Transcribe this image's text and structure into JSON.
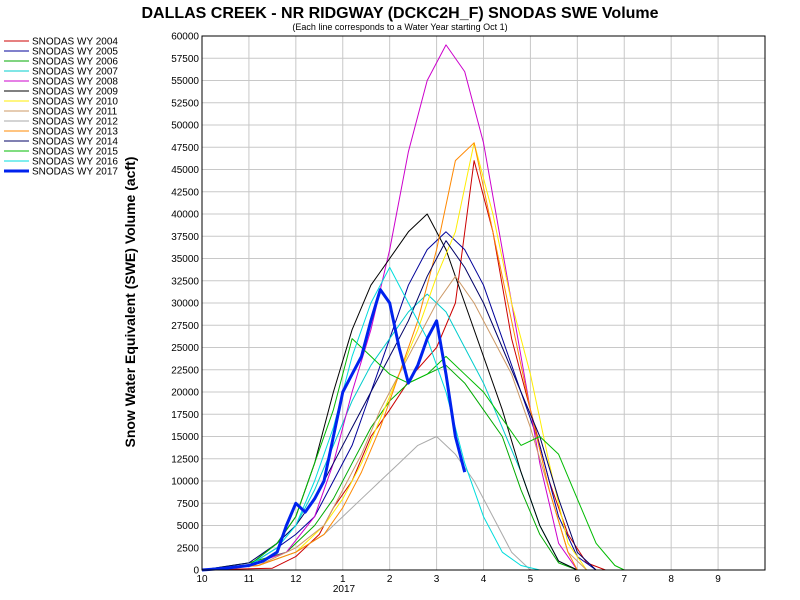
{
  "chart_data": {
    "type": "line",
    "title": "DALLAS CREEK - NR RIDGWAY (DCKC2H_F) SNODAS SWE Volume",
    "subtitle": "(Each line corresponds to a Water Year starting Oct 1)",
    "ylabel": "Snow Water Equivalent (SWE) Volume (acft)",
    "xlabel": "",
    "ylim": [
      0,
      60000
    ],
    "yticks": [
      0,
      2500,
      5000,
      7500,
      10000,
      12500,
      15000,
      17500,
      20000,
      22500,
      25000,
      27500,
      30000,
      32500,
      35000,
      37500,
      40000,
      42500,
      45000,
      47500,
      50000,
      52500,
      55000,
      57500,
      60000
    ],
    "xlim": [
      0,
      12
    ],
    "xticks": [
      {
        "x": 0,
        "label": "10"
      },
      {
        "x": 1,
        "label": "11"
      },
      {
        "x": 2,
        "label": "12"
      },
      {
        "x": 3,
        "label": "1"
      },
      {
        "x": 4,
        "label": "2"
      },
      {
        "x": 5,
        "label": "3"
      },
      {
        "x": 6,
        "label": "4"
      },
      {
        "x": 7,
        "label": "5"
      },
      {
        "x": 8,
        "label": "6"
      },
      {
        "x": 9,
        "label": "7"
      },
      {
        "x": 10,
        "label": "8"
      },
      {
        "x": 11,
        "label": "9"
      }
    ],
    "year_label": "2017",
    "grid": true,
    "legend_position": "left",
    "series": [
      {
        "name": "SNODAS WY 2004",
        "color": "#cc0000",
        "width": 1,
        "x": [
          0,
          1.5,
          2,
          2.5,
          2.8,
          3.2,
          3.6,
          4,
          4.5,
          5,
          5.4,
          5.8,
          6.2,
          6.6,
          7,
          7.4,
          7.8,
          8.2,
          8.6
        ],
        "y": [
          0,
          200,
          1500,
          4000,
          7000,
          10000,
          15000,
          18000,
          22000,
          25000,
          30000,
          46000,
          38000,
          26000,
          18000,
          10000,
          4000,
          800,
          0
        ]
      },
      {
        "name": "SNODAS WY 2005",
        "color": "#000099",
        "width": 1,
        "x": [
          0,
          1,
          1.6,
          2,
          2.4,
          2.8,
          3.2,
          3.6,
          4,
          4.4,
          4.8,
          5.2,
          5.6,
          6,
          6.4,
          6.8,
          7.2,
          7.6,
          8,
          8.4
        ],
        "y": [
          0,
          500,
          2500,
          4000,
          6000,
          10000,
          14000,
          20000,
          26000,
          32000,
          36000,
          38000,
          36000,
          32000,
          26000,
          20000,
          14000,
          6000,
          1500,
          0
        ]
      },
      {
        "name": "SNODAS WY 2006",
        "color": "#00aa00",
        "width": 1,
        "x": [
          0,
          1,
          1.8,
          2.4,
          2.8,
          3.2,
          3.6,
          4,
          4.4,
          4.8,
          5.2,
          5.6,
          6,
          6.4,
          6.8,
          7.2,
          7.6,
          8
        ],
        "y": [
          0,
          800,
          2000,
          5000,
          8000,
          12000,
          16000,
          19000,
          21000,
          22000,
          23000,
          21000,
          18000,
          15000,
          9000,
          4000,
          800,
          0
        ]
      },
      {
        "name": "SNODAS WY 2007",
        "color": "#00cccc",
        "width": 1,
        "x": [
          0,
          1,
          1.6,
          2,
          2.4,
          2.8,
          3.2,
          3.6,
          4,
          4.4,
          4.8,
          5.2,
          5.6,
          6,
          6.4,
          6.8,
          7.2,
          7.6,
          8
        ],
        "y": [
          0,
          500,
          3000,
          5000,
          9000,
          14000,
          19000,
          23000,
          26000,
          29000,
          31000,
          29000,
          25000,
          21000,
          16000,
          11000,
          5000,
          1000,
          0
        ]
      },
      {
        "name": "SNODAS WY 2008",
        "color": "#cc00cc",
        "width": 1,
        "x": [
          0,
          1,
          1.8,
          2.4,
          2.8,
          3.2,
          3.6,
          4,
          4.4,
          4.8,
          5.2,
          5.6,
          6,
          6.4,
          6.8,
          7.2,
          7.6,
          8
        ],
        "y": [
          0,
          500,
          2000,
          6000,
          12000,
          20000,
          27000,
          36000,
          47000,
          55000,
          59000,
          56000,
          48000,
          36000,
          24000,
          12000,
          3000,
          0
        ]
      },
      {
        "name": "SNODAS WY 2009",
        "color": "#000000",
        "width": 1,
        "x": [
          0,
          1,
          1.6,
          2,
          2.4,
          2.8,
          3.2,
          3.6,
          4,
          4.4,
          4.8,
          5.2,
          5.6,
          6,
          6.4,
          6.8,
          7.2,
          7.6,
          8
        ],
        "y": [
          0,
          500,
          3000,
          6000,
          12000,
          20000,
          27000,
          32000,
          35000,
          38000,
          40000,
          36000,
          30000,
          24000,
          18000,
          11000,
          5000,
          1000,
          0
        ]
      },
      {
        "name": "SNODAS WY 2010",
        "color": "#ffee00",
        "width": 1,
        "x": [
          0,
          1.2,
          2,
          2.6,
          3,
          3.4,
          3.8,
          4.2,
          4.6,
          5,
          5.4,
          5.8,
          6.2,
          6.6,
          7,
          7.4,
          7.8,
          8.2
        ],
        "y": [
          0,
          500,
          2000,
          5000,
          8000,
          12000,
          17000,
          22000,
          27000,
          33000,
          38000,
          48000,
          40000,
          30000,
          22000,
          12000,
          3000,
          0
        ]
      },
      {
        "name": "SNODAS WY 2011",
        "color": "#cc9966",
        "width": 1,
        "x": [
          0,
          1.2,
          2,
          2.6,
          3,
          3.4,
          3.8,
          4.2,
          4.6,
          5,
          5.4,
          5.8,
          6.2,
          6.6,
          7,
          7.4,
          7.8,
          8.2
        ],
        "y": [
          0,
          500,
          2500,
          5000,
          9000,
          13000,
          18000,
          22000,
          26000,
          30000,
          33000,
          30000,
          26000,
          22000,
          16000,
          9000,
          2000,
          0
        ]
      },
      {
        "name": "SNODAS WY 2012",
        "color": "#aaaaaa",
        "width": 1,
        "x": [
          0,
          1.2,
          2,
          2.6,
          3,
          3.4,
          3.8,
          4.2,
          4.6,
          5,
          5.4,
          5.8,
          6.2,
          6.6,
          7
        ],
        "y": [
          0,
          500,
          2000,
          4000,
          6000,
          8000,
          10000,
          12000,
          14000,
          15000,
          13000,
          10000,
          6000,
          2000,
          0
        ]
      },
      {
        "name": "SNODAS WY 2013",
        "color": "#ff8800",
        "width": 1,
        "x": [
          0,
          1.2,
          2,
          2.6,
          3,
          3.4,
          3.8,
          4.2,
          4.6,
          5,
          5.4,
          5.8,
          6.2,
          6.6,
          7,
          7.4,
          7.8,
          8
        ],
        "y": [
          0,
          500,
          2000,
          4000,
          7000,
          11000,
          16000,
          22000,
          28000,
          36000,
          46000,
          48000,
          38000,
          28000,
          18000,
          9000,
          2000,
          0
        ]
      },
      {
        "name": "SNODAS WY 2014",
        "color": "#000066",
        "width": 1,
        "x": [
          0,
          1,
          1.6,
          2,
          2.4,
          2.8,
          3.2,
          3.6,
          4,
          4.4,
          4.8,
          5.2,
          5.6,
          6,
          6.4,
          6.8,
          7.2,
          7.6,
          8,
          8.4
        ],
        "y": [
          0,
          800,
          3000,
          5000,
          8000,
          12000,
          16000,
          20000,
          24000,
          28000,
          33000,
          37000,
          34000,
          30000,
          25000,
          20000,
          15000,
          8000,
          2000,
          0
        ]
      },
      {
        "name": "SNODAS WY 2015",
        "color": "#00bb00",
        "width": 1,
        "x": [
          0,
          1,
          1.6,
          2,
          2.4,
          2.8,
          3.2,
          3.6,
          4,
          4.4,
          4.8,
          5.2,
          5.6,
          6,
          6.4,
          6.8,
          7.2,
          7.6,
          8,
          8.4,
          8.8,
          9
        ],
        "y": [
          0,
          500,
          3000,
          6000,
          12000,
          18000,
          26000,
          24000,
          22000,
          21000,
          22000,
          24000,
          22000,
          20000,
          17000,
          14000,
          15000,
          13000,
          8000,
          3000,
          500,
          0
        ]
      },
      {
        "name": "SNODAS WY 2016",
        "color": "#00dddd",
        "width": 1,
        "x": [
          0,
          1,
          1.6,
          2,
          2.4,
          2.8,
          3.2,
          3.6,
          4,
          4.4,
          4.8,
          5.2,
          5.6,
          6,
          6.4,
          6.8,
          7.2
        ],
        "y": [
          0,
          500,
          2500,
          5000,
          10000,
          16000,
          24000,
          30000,
          34000,
          30000,
          26000,
          20000,
          12000,
          6000,
          2000,
          500,
          0
        ]
      },
      {
        "name": "SNODAS WY 2017",
        "color": "#0022ee",
        "width": 3,
        "x": [
          0,
          0.5,
          1,
          1.3,
          1.6,
          1.8,
          2,
          2.2,
          2.4,
          2.6,
          2.8,
          3,
          3.2,
          3.4,
          3.6,
          3.8,
          4,
          4.2,
          4.4,
          4.6,
          4.8,
          5,
          5.2,
          5.4,
          5.6
        ],
        "y": [
          0,
          200,
          500,
          1000,
          2000,
          5000,
          7500,
          6500,
          8000,
          10000,
          15000,
          20000,
          22000,
          24000,
          28000,
          31500,
          30000,
          25000,
          21000,
          23000,
          26000,
          28000,
          22000,
          15000,
          11000
        ]
      }
    ]
  }
}
